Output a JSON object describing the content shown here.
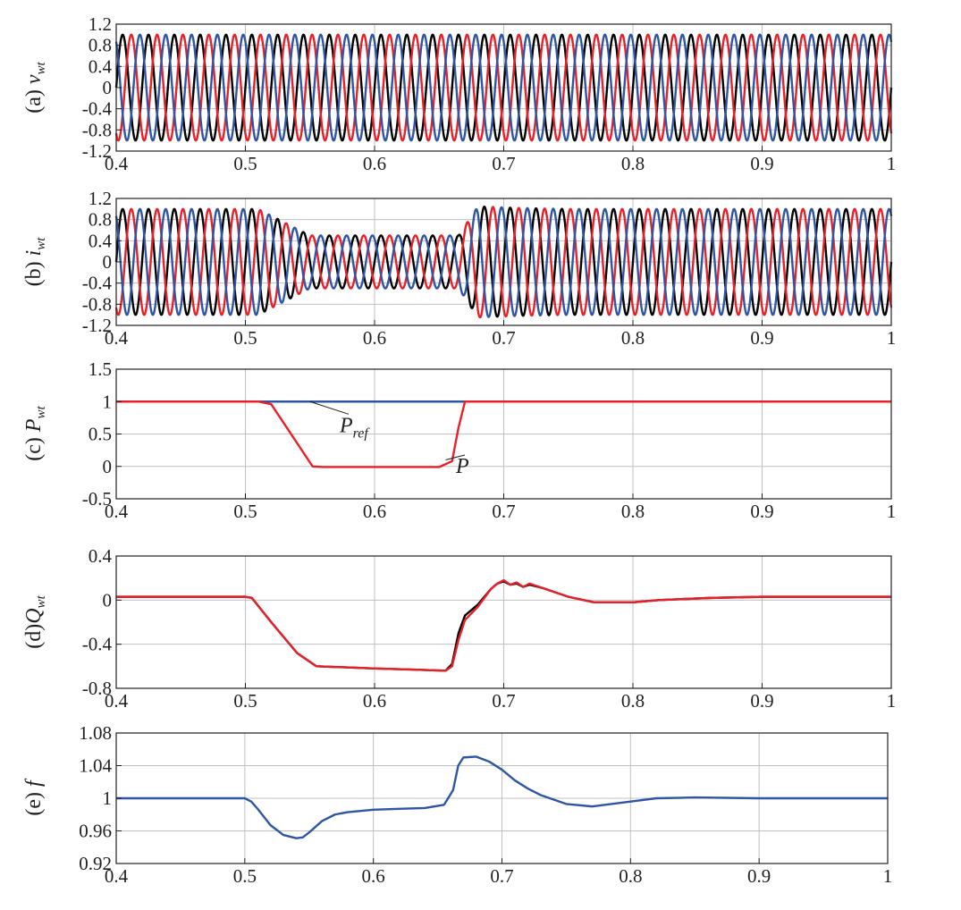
{
  "chart_data": [
    {
      "id": "a",
      "type": "line",
      "ylabel": {
        "prefix": "(a) ",
        "main": "v",
        "sub": "wt"
      },
      "xlim": [
        0.4,
        1.0
      ],
      "ylim": [
        -1.2,
        1.2
      ],
      "x_ticks": [
        "0.4",
        "0.5",
        "0.6",
        "0.7",
        "0.8",
        "0.9",
        "1"
      ],
      "y_ticks": [
        "1.2",
        "0.8",
        "0.4",
        "0",
        "-0.4",
        "-0.8",
        "-1.2"
      ],
      "grid": true,
      "signal": {
        "kind": "three-phase sinusoid",
        "frequency_hz": 50,
        "amplitude": [
          [
            0.4,
            1.0
          ],
          [
            1.0,
            1.0
          ]
        ]
      },
      "series": [
        {
          "color": "#000000",
          "phase_deg": 0
        },
        {
          "color": "#e8202a",
          "phase_deg": -120
        },
        {
          "color": "#2f55a4",
          "phase_deg": 120
        }
      ]
    },
    {
      "id": "b",
      "type": "line",
      "ylabel": {
        "prefix": "(b) ",
        "main": "i",
        "sub": "wt"
      },
      "xlim": [
        0.4,
        1.0
      ],
      "ylim": [
        -1.2,
        1.2
      ],
      "x_ticks": [
        "0.4",
        "0.5",
        "0.6",
        "0.7",
        "0.8",
        "0.9",
        "1"
      ],
      "y_ticks": [
        "1.2",
        "0.8",
        "0.4",
        "0",
        "-0.4",
        "-0.8",
        "-1.2"
      ],
      "grid": true,
      "signal": {
        "kind": "three-phase sinusoid",
        "frequency_hz": 50,
        "amplitude": [
          [
            0.4,
            1.0
          ],
          [
            0.51,
            1.0
          ],
          [
            0.55,
            0.5
          ],
          [
            0.665,
            0.5
          ],
          [
            0.68,
            1.05
          ],
          [
            0.71,
            1.02
          ],
          [
            0.75,
            1.0
          ],
          [
            1.0,
            1.0
          ]
        ]
      },
      "series": [
        {
          "color": "#000000",
          "phase_deg": 0
        },
        {
          "color": "#e8202a",
          "phase_deg": -120
        },
        {
          "color": "#2f55a4",
          "phase_deg": 120
        }
      ]
    },
    {
      "id": "c",
      "type": "line",
      "ylabel": {
        "prefix": "(c) ",
        "main": "P",
        "sub": "wt"
      },
      "xlim": [
        0.4,
        1.0
      ],
      "ylim": [
        -0.5,
        1.5
      ],
      "x_ticks": [
        "0.4",
        "0.5",
        "0.6",
        "0.7",
        "0.8",
        "0.9",
        "1"
      ],
      "y_ticks": [
        "1.5",
        "1",
        "0.5",
        "0",
        "-0.5"
      ],
      "grid": true,
      "series": [
        {
          "label": "Pref",
          "color": "#2f55a4",
          "x": [
            0.4,
            1.0
          ],
          "y": [
            1.0,
            1.0
          ]
        },
        {
          "label": "P",
          "color": "#e8202a",
          "x": [
            0.4,
            0.51,
            0.52,
            0.552,
            0.56,
            0.6,
            0.65,
            0.66,
            0.665,
            0.67,
            0.68,
            1.0
          ],
          "y": [
            1.0,
            1.0,
            0.96,
            0.0,
            -0.01,
            -0.01,
            -0.01,
            0.08,
            0.6,
            1.0,
            1.0,
            1.0
          ]
        }
      ],
      "annotations": [
        {
          "text": "P",
          "sub": "ref",
          "at": [
            0.573,
            0.53
          ],
          "pointer_to": [
            0.55,
            1.0
          ]
        },
        {
          "text": "P",
          "at": [
            0.663,
            -0.1
          ],
          "pointer_to": [
            0.655,
            0.1
          ]
        }
      ]
    },
    {
      "id": "d",
      "type": "line",
      "ylabel": {
        "prefix": "(d)",
        "main": "Q",
        "sub": "wt"
      },
      "xlim": [
        0.4,
        1.0
      ],
      "ylim": [
        -0.8,
        0.4
      ],
      "x_ticks": [
        "0.4",
        "0.5",
        "0.6",
        "0.7",
        "0.8",
        "0.9",
        "1"
      ],
      "y_ticks": [
        "0.4",
        "0",
        "-0.4",
        "-0.8"
      ],
      "grid": true,
      "series": [
        {
          "color": "#000000",
          "x": [
            0.4,
            0.5,
            0.505,
            0.52,
            0.54,
            0.555,
            0.6,
            0.63,
            0.655,
            0.66,
            0.665,
            0.67,
            0.68,
            0.69,
            0.695,
            0.7,
            0.705,
            0.71,
            0.715,
            0.72,
            0.73,
            0.75,
            0.77,
            0.8,
            0.82,
            0.86,
            0.9,
            0.95,
            1.0
          ],
          "y": [
            0.03,
            0.03,
            0.02,
            -0.2,
            -0.48,
            -0.6,
            -0.62,
            -0.63,
            -0.64,
            -0.58,
            -0.3,
            -0.14,
            -0.04,
            0.1,
            0.15,
            0.17,
            0.14,
            0.15,
            0.12,
            0.14,
            0.11,
            0.03,
            -0.02,
            -0.02,
            0.0,
            0.02,
            0.03,
            0.03,
            0.03
          ]
        },
        {
          "color": "#e8202a",
          "x": [
            0.4,
            0.5,
            0.505,
            0.52,
            0.54,
            0.555,
            0.6,
            0.63,
            0.655,
            0.66,
            0.665,
            0.67,
            0.68,
            0.69,
            0.695,
            0.7,
            0.705,
            0.71,
            0.715,
            0.72,
            0.73,
            0.75,
            0.77,
            0.8,
            0.82,
            0.86,
            0.9,
            0.95,
            1.0
          ],
          "y": [
            0.03,
            0.03,
            0.02,
            -0.2,
            -0.48,
            -0.6,
            -0.62,
            -0.63,
            -0.64,
            -0.6,
            -0.36,
            -0.18,
            -0.06,
            0.1,
            0.15,
            0.18,
            0.14,
            0.16,
            0.12,
            0.15,
            0.11,
            0.03,
            -0.02,
            -0.02,
            0.0,
            0.02,
            0.03,
            0.03,
            0.03
          ]
        }
      ]
    },
    {
      "id": "e",
      "type": "line",
      "ylabel": {
        "prefix": "(e) ",
        "main": "f",
        "sub": ""
      },
      "xlim": [
        0.4,
        1.0
      ],
      "ylim": [
        0.92,
        1.08
      ],
      "x_ticks": [
        "0.4",
        "0.5",
        "0.6",
        "0.7",
        "0.8",
        "0.9",
        "1"
      ],
      "y_ticks": [
        "1.08",
        "1.04",
        "1",
        "0.96",
        "0.92"
      ],
      "grid": true,
      "series": [
        {
          "color": "#2f55a4",
          "x": [
            0.4,
            0.5,
            0.505,
            0.51,
            0.52,
            0.53,
            0.54,
            0.545,
            0.55,
            0.56,
            0.57,
            0.58,
            0.6,
            0.62,
            0.64,
            0.655,
            0.662,
            0.666,
            0.67,
            0.68,
            0.685,
            0.69,
            0.7,
            0.71,
            0.72,
            0.73,
            0.75,
            0.77,
            0.8,
            0.82,
            0.85,
            0.9,
            0.95,
            1.0
          ],
          "y": [
            1.0,
            1.0,
            0.996,
            0.987,
            0.967,
            0.955,
            0.951,
            0.952,
            0.958,
            0.972,
            0.98,
            0.983,
            0.986,
            0.987,
            0.988,
            0.992,
            1.01,
            1.04,
            1.05,
            1.051,
            1.048,
            1.045,
            1.035,
            1.022,
            1.012,
            1.004,
            0.993,
            0.99,
            0.996,
            1.0,
            1.001,
            1.0,
            1.0,
            1.0
          ]
        }
      ]
    }
  ]
}
